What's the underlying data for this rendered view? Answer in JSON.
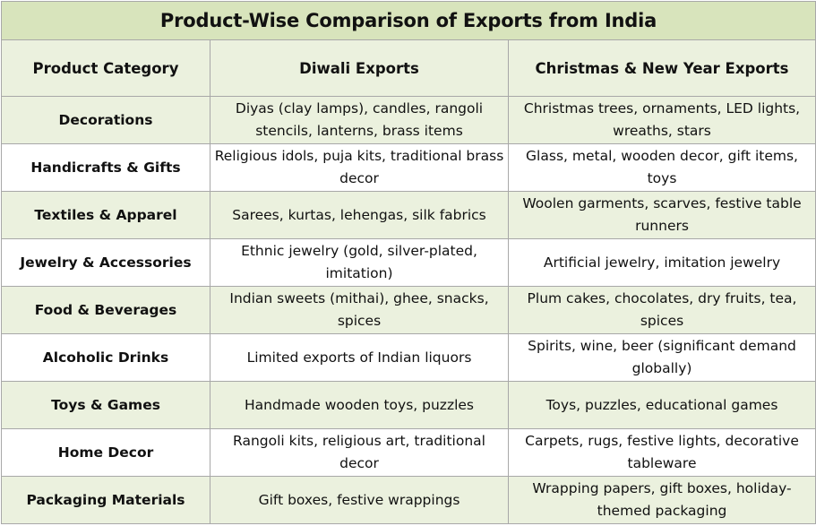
{
  "title": "Product-Wise Comparison of Exports from India",
  "headers": [
    "Product Category",
    "Diwali Exports",
    "Christmas & New Year Exports"
  ],
  "rows": [
    [
      "Decorations",
      "Diyas (clay lamps), candles, rangoli stencils, lanterns, brass items",
      "Christmas trees, ornaments, LED lights, wreaths, stars"
    ],
    [
      "Handicrafts & Gifts",
      "Religious idols, puja kits, traditional brass decor",
      "Glass, metal, wooden decor, gift items, toys"
    ],
    [
      "Textiles & Apparel",
      "Sarees, kurtas, lehengas, silk fabrics",
      "Woolen garments, scarves, festive table runners"
    ],
    [
      "Jewelry & Accessories",
      "Ethnic jewelry (gold, silver-plated, imitation)",
      "Artificial jewelry, imitation jewelry"
    ],
    [
      "Food & Beverages",
      "Indian sweets (mithai), ghee, snacks, spices",
      "Plum cakes, chocolates, dry fruits, tea, spices"
    ],
    [
      "Alcoholic Drinks",
      "Limited exports of Indian liquors",
      "Spirits, wine, beer (significant demand globally)"
    ],
    [
      "Toys & Games",
      "Handmade wooden toys, puzzles",
      "Toys, puzzles, educational games"
    ],
    [
      "Home Decor",
      "Rangoli kits, religious art, traditional decor",
      "Carpets, rugs, festive lights, decorative tableware"
    ],
    [
      "Packaging Materials",
      "Gift boxes, festive wrappings",
      "Wrapping papers, gift boxes, holiday-themed packaging"
    ]
  ]
}
